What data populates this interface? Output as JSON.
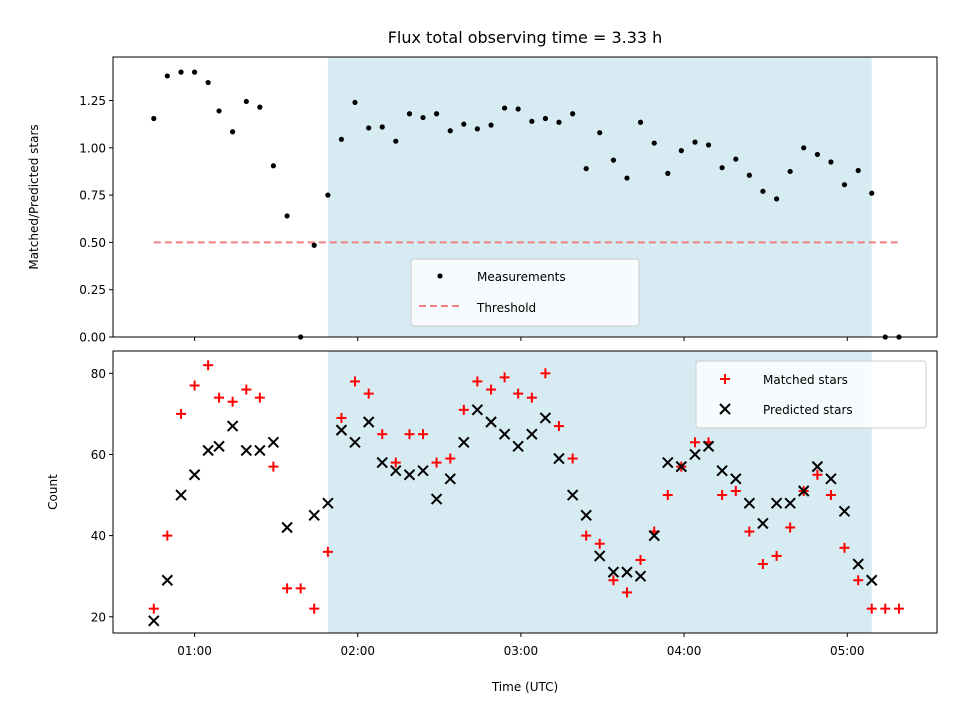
{
  "chart_data": [
    {
      "type": "scatter",
      "title": "Flux total observing time = 3.33 h",
      "ylabel": "Matched/Predicted stars",
      "xlabel": "",
      "xlim_hours": [
        0.5,
        5.55
      ],
      "ylim": [
        0,
        1.48
      ],
      "yticks": [
        0.0,
        0.25,
        0.5,
        0.75,
        1.0,
        1.25
      ],
      "ytick_labels": [
        "0.00",
        "0.25",
        "0.50",
        "0.75",
        "1.00",
        "1.25"
      ],
      "grid": false,
      "legend_position": "lower-center",
      "shaded_interval_hours": [
        1.817,
        5.15
      ],
      "shaded_color": "#add8e6",
      "series": [
        {
          "name": "Measurements",
          "kind": "points",
          "color": "#000000",
          "x_hours": [
            0.75,
            0.833,
            0.917,
            1.0,
            1.083,
            1.15,
            1.233,
            1.317,
            1.4,
            1.483,
            1.567,
            1.65,
            1.733,
            1.817,
            1.9,
            1.983,
            2.067,
            2.15,
            2.233,
            2.317,
            2.4,
            2.483,
            2.567,
            2.65,
            2.733,
            2.817,
            2.9,
            2.983,
            3.067,
            3.15,
            3.233,
            3.317,
            3.4,
            3.483,
            3.567,
            3.65,
            3.733,
            3.817,
            3.9,
            3.983,
            4.067,
            4.15,
            4.233,
            4.317,
            4.4,
            4.483,
            4.567,
            4.65,
            4.733,
            4.817,
            4.9,
            4.983,
            5.067,
            5.15,
            5.233,
            5.317
          ],
          "y": [
            1.155,
            1.38,
            1.4,
            1.4,
            1.345,
            1.195,
            1.085,
            1.245,
            1.215,
            0.905,
            0.64,
            0.0,
            0.485,
            0.75,
            1.045,
            1.24,
            1.105,
            1.11,
            1.035,
            1.18,
            1.16,
            1.18,
            1.09,
            1.125,
            1.1,
            1.12,
            1.21,
            1.205,
            1.14,
            1.155,
            1.135,
            1.18,
            0.89,
            1.08,
            0.935,
            0.84,
            1.135,
            1.025,
            0.865,
            0.985,
            1.03,
            1.015,
            0.895,
            0.94,
            0.855,
            0.77,
            0.73,
            0.875,
            1.0,
            0.965,
            0.925,
            0.805,
            0.88,
            0.76,
            0.0,
            0.0
          ]
        },
        {
          "name": "Threshold",
          "kind": "dashed-line",
          "color": "#f08080",
          "x_hours": [
            0.75,
            5.317
          ],
          "y": [
            0.5,
            0.5
          ]
        }
      ]
    },
    {
      "type": "scatter",
      "title": "",
      "ylabel": "Count",
      "xlabel": "Time (UTC)",
      "xlim_hours": [
        0.5,
        5.55
      ],
      "ylim": [
        16,
        85.5
      ],
      "yticks": [
        20,
        40,
        60,
        80
      ],
      "ytick_labels": [
        "20",
        "40",
        "60",
        "80"
      ],
      "xticks_hours": [
        1,
        2,
        3,
        4,
        5
      ],
      "xtick_labels": [
        "01:00",
        "02:00",
        "03:00",
        "04:00",
        "05:00"
      ],
      "grid": false,
      "legend_position": "upper-right",
      "shaded_interval_hours": [
        1.817,
        5.15
      ],
      "shaded_color": "#add8e6",
      "series": [
        {
          "name": "Matched stars",
          "marker": "plus",
          "color": "#ff0000",
          "x_hours": [
            0.75,
            0.833,
            0.917,
            1.0,
            1.083,
            1.15,
            1.233,
            1.317,
            1.4,
            1.483,
            1.567,
            1.65,
            1.733,
            1.817,
            1.9,
            1.983,
            2.067,
            2.15,
            2.233,
            2.317,
            2.4,
            2.483,
            2.567,
            2.65,
            2.733,
            2.817,
            2.9,
            2.983,
            3.067,
            3.15,
            3.233,
            3.317,
            3.4,
            3.483,
            3.567,
            3.65,
            3.733,
            3.817,
            3.9,
            3.983,
            4.067,
            4.15,
            4.233,
            4.317,
            4.4,
            4.483,
            4.567,
            4.65,
            4.733,
            4.817,
            4.9,
            4.983,
            5.067,
            5.15,
            5.233,
            5.317
          ],
          "y": [
            22,
            40,
            70,
            77,
            82,
            74,
            73,
            76,
            74,
            57,
            27,
            27,
            22,
            36,
            69,
            78,
            75,
            65,
            58,
            65,
            65,
            58,
            59,
            71,
            78,
            76,
            79,
            75,
            74,
            80,
            67,
            59,
            40,
            38,
            29,
            26,
            34,
            41,
            50,
            57,
            63,
            63,
            50,
            51,
            41,
            33,
            35,
            42,
            51,
            55,
            50,
            37,
            29,
            22,
            22,
            22
          ]
        },
        {
          "name": "Predicted stars",
          "marker": "x",
          "color": "#000000",
          "x_hours": [
            0.75,
            0.833,
            0.917,
            1.0,
            1.083,
            1.15,
            1.233,
            1.317,
            1.4,
            1.483,
            1.567,
            1.733,
            1.817,
            1.9,
            1.983,
            2.067,
            2.15,
            2.233,
            2.317,
            2.4,
            2.483,
            2.567,
            2.65,
            2.733,
            2.817,
            2.9,
            2.983,
            3.067,
            3.15,
            3.233,
            3.317,
            3.4,
            3.483,
            3.567,
            3.65,
            3.733,
            3.817,
            3.9,
            3.983,
            4.067,
            4.15,
            4.233,
            4.317,
            4.4,
            4.483,
            4.567,
            4.65,
            4.733,
            4.817,
            4.9,
            4.983,
            5.067,
            5.15
          ],
          "y": [
            19,
            29,
            50,
            55,
            61,
            62,
            67,
            61,
            61,
            63,
            42,
            45,
            48,
            66,
            63,
            68,
            58,
            56,
            55,
            56,
            49,
            54,
            63,
            71,
            68,
            65,
            62,
            65,
            69,
            59,
            50,
            45,
            35,
            31,
            31,
            30,
            40,
            58,
            57,
            60,
            62,
            56,
            54,
            48,
            43,
            48,
            48,
            51,
            57,
            54,
            46,
            33,
            29
          ]
        }
      ]
    }
  ]
}
